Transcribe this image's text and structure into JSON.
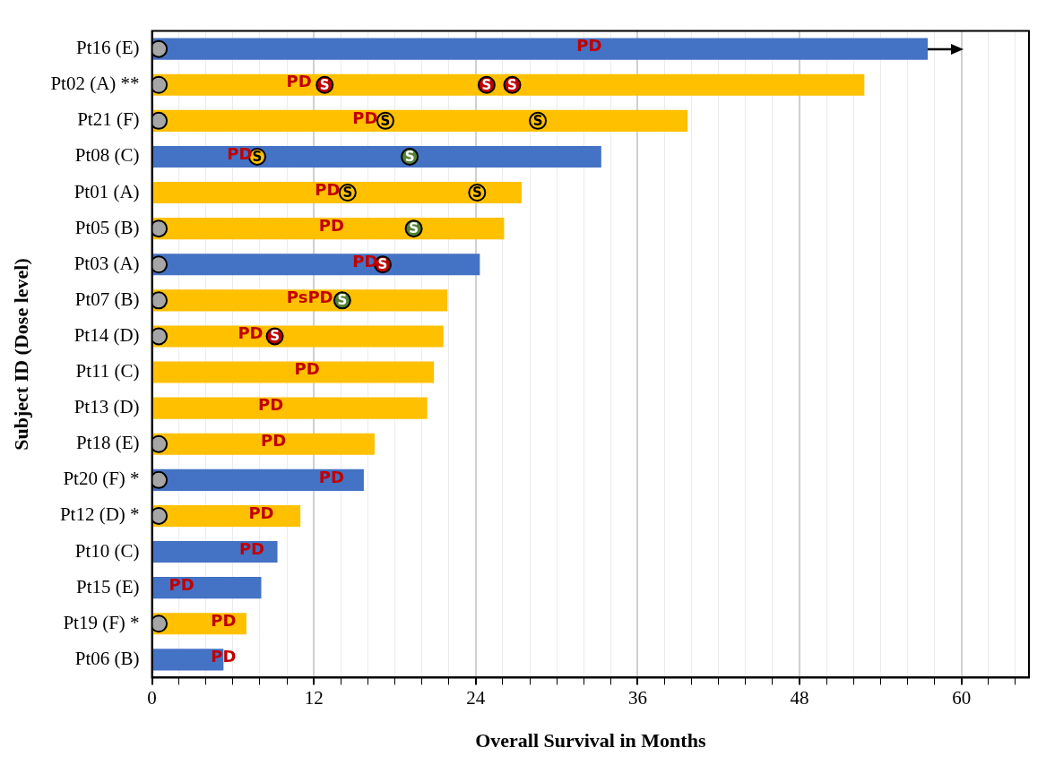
{
  "chart_data": {
    "type": "bar",
    "orientation": "horizontal",
    "xlabel": "Overall Survival in Months",
    "ylabel": "Subject ID (Dose level)",
    "categories": [
      "Pt16 (E)",
      "Pt02 (A) **",
      "Pt21 (F)",
      "Pt08 (C)",
      "Pt01 (A)",
      "Pt05 (B)",
      "Pt03 (A)",
      "Pt07 (B)",
      "Pt14 (D)",
      "Pt11 (C)",
      "Pt13 (D)",
      "Pt18 (E)",
      "Pt20 (F) *",
      "Pt12 (D) *",
      "Pt10 (C)",
      "Pt15 (E)",
      "Pt19 (F) *",
      "Pt06 (B)"
    ],
    "values": [
      57.5,
      52.8,
      39.7,
      33.3,
      27.4,
      26.1,
      24.3,
      21.9,
      21.6,
      20.9,
      20.4,
      16.5,
      15.7,
      11.0,
      9.3,
      8.1,
      7.0,
      5.3
    ],
    "colors": [
      "#4472c4",
      "#ffc000",
      "#ffc000",
      "#4472c4",
      "#ffc000",
      "#ffc000",
      "#4472c4",
      "#ffc000",
      "#ffc000",
      "#ffc000",
      "#ffc000",
      "#ffc000",
      "#4472c4",
      "#ffc000",
      "#4472c4",
      "#4472c4",
      "#ffc000",
      "#4472c4"
    ],
    "series": [
      {
        "type": "scatter",
        "color": "#a6a6a6",
        "x": [
          "Pt16 (E)",
          "Pt02 (A) **",
          "Pt21 (F)",
          "Pt05 (B)",
          "Pt03 (A)",
          "Pt07 (B)",
          "Pt14 (D)",
          "Pt18 (E)",
          "Pt20 (F) *",
          "Pt12 (D) *",
          "Pt19 (F) *"
        ],
        "values": [
          0.5,
          0.5,
          0.5,
          0.5,
          0.5,
          0.5,
          0.5,
          0.5,
          0.5,
          0.5,
          0.5
        ]
      },
      {
        "type": "scatter",
        "color": "#c00000",
        "x": [
          "Pt02 (A) **",
          "Pt02 (A) **",
          "Pt02 (A) **",
          "Pt03 (A)",
          "Pt14 (D)"
        ],
        "values": [
          12.8,
          24.8,
          26.7,
          17.1,
          9.1
        ],
        "value_labels": [
          "S",
          "S",
          "S",
          "S",
          "S"
        ]
      },
      {
        "type": "scatter",
        "color": "#ffc000",
        "x": [
          "Pt21 (F)",
          "Pt21 (F)",
          "Pt08 (C)",
          "Pt01 (A)",
          "Pt01 (A)"
        ],
        "values": [
          17.3,
          28.6,
          7.8,
          14.5,
          24.1
        ],
        "value_labels": [
          "S",
          "S",
          "S",
          "S",
          "S"
        ]
      },
      {
        "type": "scatter",
        "color": "#548235",
        "x": [
          "Pt08 (C)",
          "Pt05 (B)",
          "Pt07 (B)"
        ],
        "values": [
          19.1,
          19.4,
          14.1
        ],
        "value_labels": [
          "S",
          "S",
          "S"
        ]
      }
    ],
    "marker": "circle",
    "xlim": [
      0,
      65
    ],
    "xticks": [
      0,
      {
        "value": 2,
        "label": null
      },
      {
        "value": 4,
        "label": null
      },
      {
        "value": 6,
        "label": null
      },
      {
        "value": 8,
        "label": null
      },
      {
        "value": 10,
        "label": null
      },
      12,
      {
        "value": 14,
        "label": null
      },
      {
        "value": 16,
        "label": null
      },
      {
        "value": 18,
        "label": null
      },
      {
        "value": 20,
        "label": null
      },
      {
        "value": 22,
        "label": null
      },
      24,
      {
        "value": 26,
        "label": null
      },
      {
        "value": 28,
        "label": null
      },
      {
        "value": 30,
        "label": null
      },
      {
        "value": 32,
        "label": null
      },
      {
        "value": 34,
        "label": null
      },
      36,
      {
        "value": 38,
        "label": null
      },
      {
        "value": 40,
        "label": null
      },
      {
        "value": 42,
        "label": null
      },
      {
        "value": 44,
        "label": null
      },
      {
        "value": 46,
        "label": null
      },
      48,
      {
        "value": 50,
        "label": null
      },
      {
        "value": 52,
        "label": null
      },
      {
        "value": 54,
        "label": null
      },
      {
        "value": 56,
        "label": null
      },
      {
        "value": 58,
        "label": null
      },
      60,
      {
        "value": 62,
        "label": null
      },
      {
        "value": 64,
        "label": null
      }
    ],
    "grid": "x",
    "legend": false,
    "annotations": [
      {
        "text": "PD",
        "x": 32.4,
        "y": "Pt16 (E)"
      },
      {
        "text": "PD",
        "x": 10.9,
        "y": "Pt02 (A) **"
      },
      {
        "text": "PD",
        "x": 15.8,
        "y": "Pt21 (F)"
      },
      {
        "text": "PD",
        "x": 6.5,
        "y": "Pt08 (C)"
      },
      {
        "text": "PD",
        "x": 13.0,
        "y": "Pt01 (A)"
      },
      {
        "text": "PD",
        "x": 13.3,
        "y": "Pt05 (B)"
      },
      {
        "text": "PD",
        "x": 15.8,
        "y": "Pt03 (A)"
      },
      {
        "text": "PsPD",
        "x": 11.7,
        "y": "Pt07 (B)"
      },
      {
        "text": "PD",
        "x": 7.3,
        "y": "Pt14 (D)"
      },
      {
        "text": "PD",
        "x": 11.5,
        "y": "Pt11 (C)"
      },
      {
        "text": "PD",
        "x": 8.8,
        "y": "Pt13 (D)"
      },
      {
        "text": "PD",
        "x": 9.0,
        "y": "Pt18 (E)"
      },
      {
        "text": "PD",
        "x": 13.3,
        "y": "Pt20 (F) *"
      },
      {
        "text": "PD",
        "x": 8.1,
        "y": "Pt12 (D) *"
      },
      {
        "text": "PD",
        "x": 7.4,
        "y": "Pt10 (C)"
      },
      {
        "text": "PD",
        "x": 2.2,
        "y": "Pt15 (E)"
      },
      {
        "text": "PD",
        "x": 5.3,
        "y": "Pt19 (F) *"
      },
      {
        "text": "PD",
        "x": 5.3,
        "y": "Pt06 (B)"
      }
    ]
  }
}
